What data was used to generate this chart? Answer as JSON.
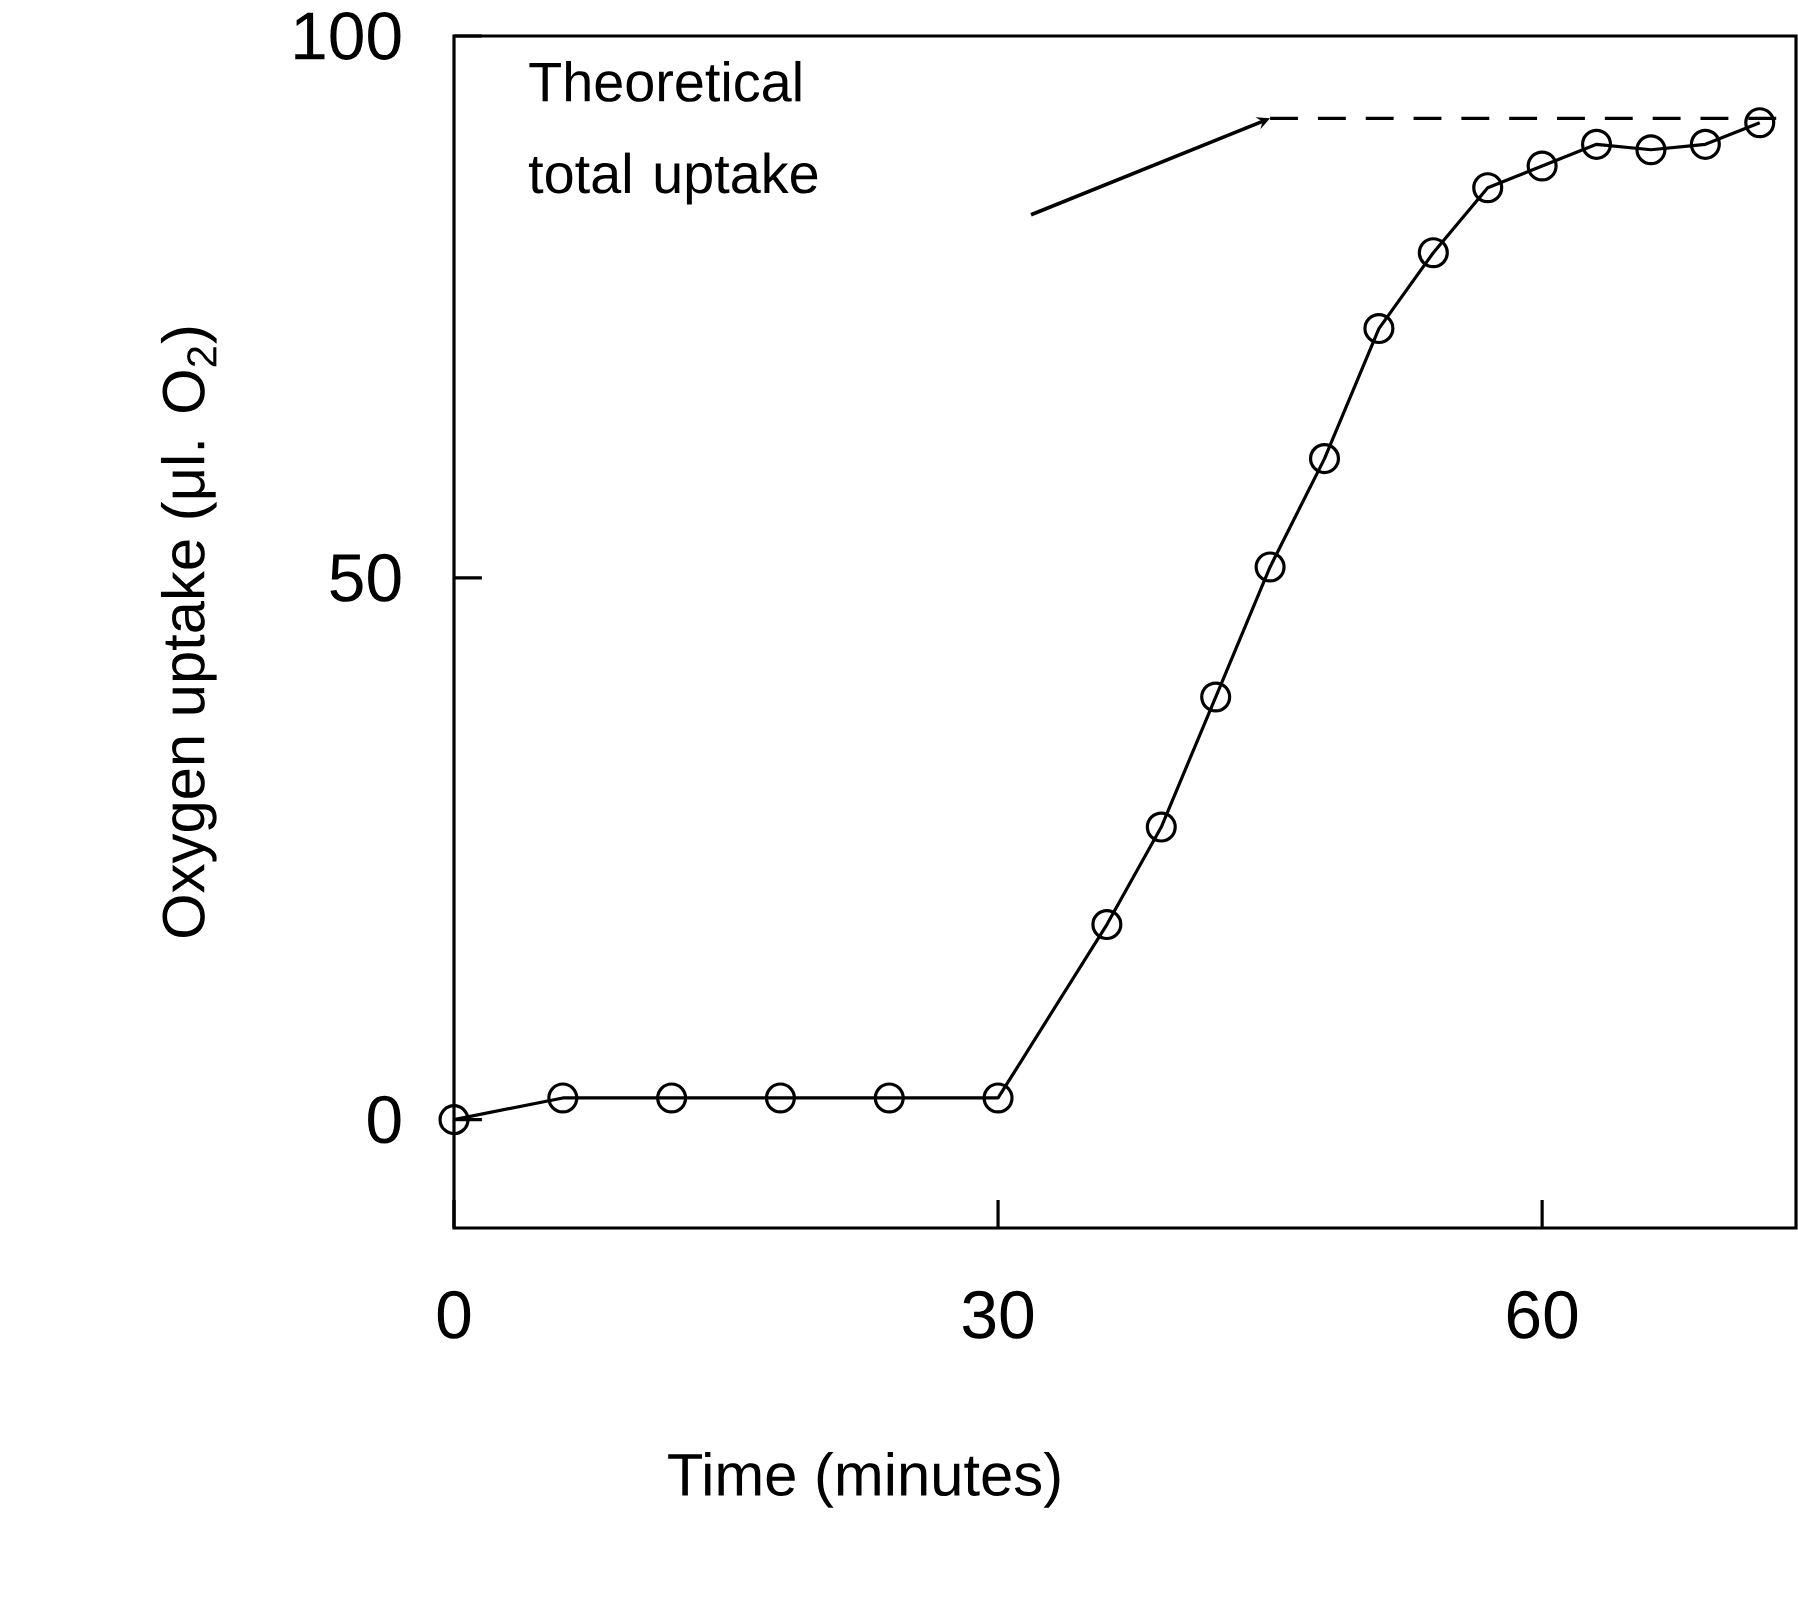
{
  "chart_data": {
    "type": "line",
    "xlabel": "Time (minutes)",
    "ylabel": "Oxygen uptake (μl. O$_{2}$)",
    "xlim": [
      0,
      74
    ],
    "ylim": [
      -10,
      100
    ],
    "xticks": [
      0,
      30,
      60
    ],
    "yticks": [
      0,
      50,
      100
    ],
    "marker": "circle",
    "annotations": [
      "Theoretical total uptake"
    ],
    "series": [
      {
        "color": "#000000",
        "x": [
          0,
          6,
          12,
          18,
          24,
          30,
          36,
          39,
          42,
          45,
          48,
          51,
          54,
          57,
          60,
          63,
          66,
          69,
          72
        ],
        "values": [
          0,
          2,
          2,
          2,
          2,
          2,
          18,
          27,
          39,
          51,
          61,
          73,
          80,
          86,
          88,
          90,
          89.5,
          90,
          92
        ]
      },
      {
        "type": "line",
        "color": "#000000",
        "line_style": "dashed",
        "marker": "none",
        "x": [
          45,
          74
        ],
        "values": [
          92.4,
          92.4
        ]
      }
    ]
  }
}
